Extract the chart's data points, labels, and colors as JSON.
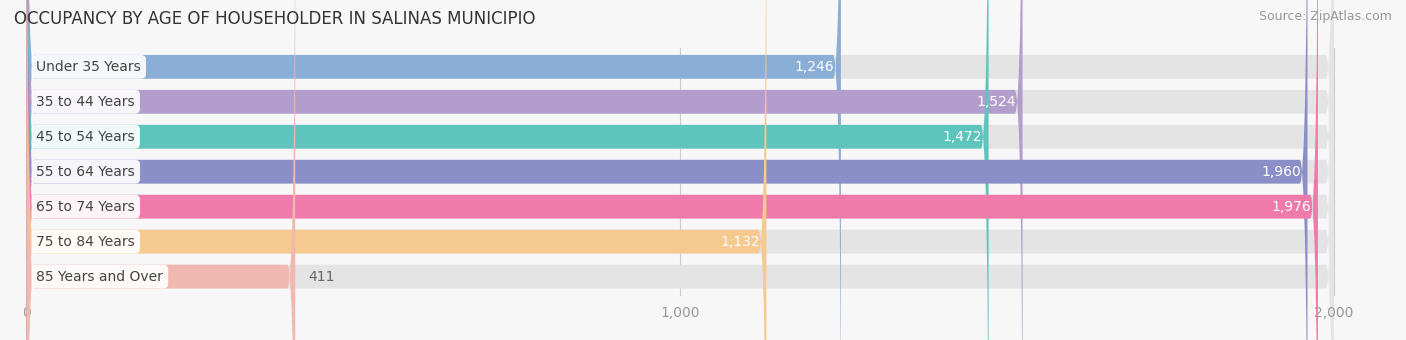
{
  "title": "OCCUPANCY BY AGE OF HOUSEHOLDER IN SALINAS MUNICIPIO",
  "source": "Source: ZipAtlas.com",
  "categories": [
    "Under 35 Years",
    "35 to 44 Years",
    "45 to 54 Years",
    "55 to 64 Years",
    "65 to 74 Years",
    "75 to 84 Years",
    "85 Years and Over"
  ],
  "values": [
    1246,
    1524,
    1472,
    1960,
    1976,
    1132,
    411
  ],
  "bar_colors": [
    "#8aaed6",
    "#b39dcc",
    "#5fc4be",
    "#8b8fc8",
    "#f07aaa",
    "#f5c990",
    "#f0b8b0"
  ],
  "data_max": 2000,
  "xlim_min": -30,
  "xlim_max": 2100,
  "xticks": [
    0,
    1000,
    2000
  ],
  "xticklabels": [
    "0",
    "1,000",
    "2,000"
  ],
  "background_color": "#f7f7f7",
  "bar_bg_color": "#e4e4e4",
  "label_color_inside": "#ffffff",
  "label_color_outside": "#666666",
  "title_fontsize": 12,
  "source_fontsize": 9,
  "tick_fontsize": 10,
  "bar_label_fontsize": 10,
  "category_fontsize": 10,
  "bar_height": 0.68,
  "rounding_size": 12
}
